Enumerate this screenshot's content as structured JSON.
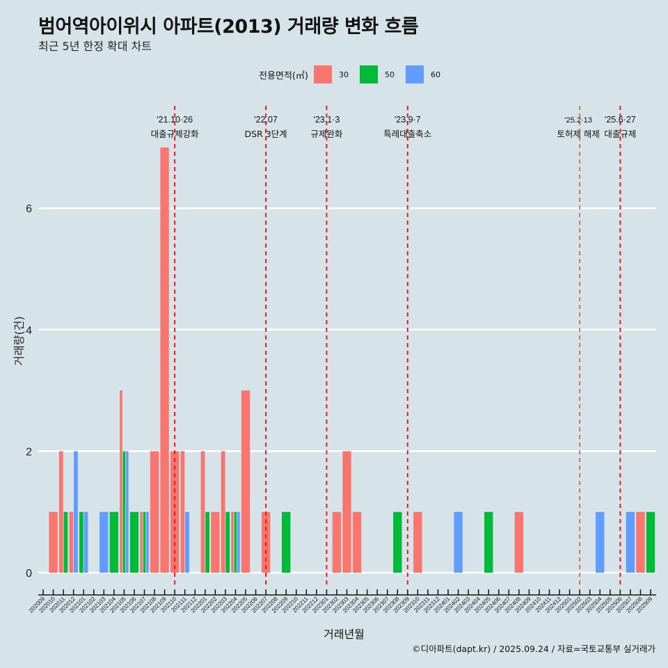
{
  "header": {
    "title": "범어역아이위시 아파트(2013) 거래량 변화 흐름",
    "subtitle": "최근 5년 한정 확대 차트"
  },
  "legend": {
    "title": "전용면적(㎡)",
    "items": [
      {
        "label": "30",
        "color": "#F8766D"
      },
      {
        "label": "50",
        "color": "#00BA38"
      },
      {
        "label": "60",
        "color": "#619CFF"
      }
    ]
  },
  "footer": "©디아파트(dapt.kr) / 2025.09.24 / 자료=국토교통부 실거래가",
  "chart_data": {
    "type": "bar",
    "title": "범어역아이위시 아파트(2013) 거래량 변화 흐름",
    "subtitle": "최근 5년 한정 확대 차트",
    "xlabel": "거래년월",
    "ylabel": "거래량(건)",
    "ylim": [
      0,
      7
    ],
    "yticks": [
      0,
      2,
      4,
      6
    ],
    "grid": "horizontal",
    "legend_position": "top",
    "categories": [
      "202009",
      "202010",
      "202011",
      "202012",
      "202101",
      "202102",
      "202103",
      "202104",
      "202105",
      "202106",
      "202107",
      "202108",
      "202109",
      "202110",
      "202111",
      "202112",
      "202201",
      "202202",
      "202203",
      "202204",
      "202205",
      "202206",
      "202207",
      "202208",
      "202209",
      "202210",
      "202211",
      "202212",
      "202301",
      "202302",
      "202303",
      "202304",
      "202305",
      "202306",
      "202307",
      "202308",
      "202309",
      "202310",
      "202311",
      "202312",
      "202401",
      "202402",
      "202403",
      "202404",
      "202405",
      "202406",
      "202407",
      "202408",
      "202409",
      "202410",
      "202411",
      "202412",
      "202501",
      "202502",
      "202503",
      "202504",
      "202505",
      "202506",
      "202507",
      "202508",
      "202509"
    ],
    "series": [
      {
        "name": "30",
        "color": "#F8766D",
        "values": [
          0,
          1,
          2,
          1,
          0,
          0,
          0,
          0,
          3,
          0,
          1,
          2,
          7,
          2,
          2,
          0,
          2,
          1,
          2,
          1,
          3,
          0,
          1,
          0,
          0,
          0,
          0,
          0,
          0,
          1,
          2,
          1,
          0,
          0,
          0,
          0,
          0,
          1,
          0,
          0,
          0,
          0,
          0,
          0,
          0,
          0,
          0,
          1,
          0,
          0,
          0,
          0,
          0,
          0,
          0,
          0,
          0,
          0,
          0,
          1,
          0
        ]
      },
      {
        "name": "50",
        "color": "#00BA38",
        "values": [
          0,
          0,
          1,
          0,
          1,
          0,
          0,
          1,
          2,
          1,
          1,
          0,
          0,
          0,
          0,
          0,
          1,
          0,
          1,
          1,
          0,
          0,
          0,
          0,
          1,
          0,
          0,
          0,
          0,
          0,
          0,
          0,
          0,
          0,
          0,
          1,
          0,
          0,
          0,
          0,
          0,
          0,
          0,
          0,
          1,
          0,
          0,
          0,
          0,
          0,
          0,
          0,
          0,
          0,
          0,
          0,
          0,
          0,
          0,
          0,
          1
        ]
      },
      {
        "name": "60",
        "color": "#619CFF",
        "values": [
          0,
          0,
          0,
          2,
          1,
          0,
          1,
          0,
          2,
          0,
          1,
          0,
          0,
          0,
          1,
          0,
          0,
          0,
          0,
          1,
          0,
          0,
          0,
          0,
          0,
          0,
          0,
          0,
          0,
          0,
          0,
          0,
          0,
          0,
          0,
          0,
          0,
          0,
          0,
          0,
          0,
          1,
          0,
          0,
          0,
          0,
          0,
          0,
          0,
          0,
          0,
          0,
          0,
          0,
          0,
          1,
          0,
          0,
          1,
          0,
          0
        ]
      }
    ],
    "annotations": [
      {
        "x": "202110",
        "date": "'21.10·26",
        "label": "대출규제강화"
      },
      {
        "x": "202207",
        "date": "'22.07",
        "label": "DSR 3단계"
      },
      {
        "x": "202301",
        "date": "'23.1·3",
        "label": "규제완화"
      },
      {
        "x": "202309",
        "date": "'23.9·7",
        "label": "특례대출축소"
      },
      {
        "x": "202502",
        "date": "'25.2·13",
        "label": "토허제 해제"
      },
      {
        "x": "202506",
        "date": "'25.6·27",
        "label": "대출규제"
      }
    ]
  }
}
